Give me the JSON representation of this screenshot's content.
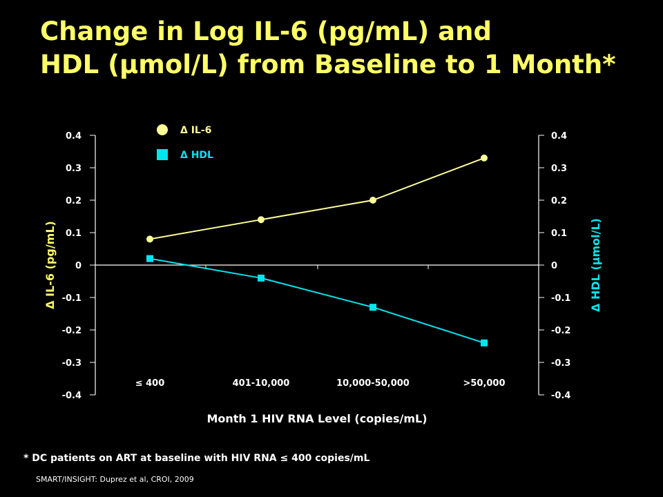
{
  "title": {
    "line1": "Change in Log IL-6 (pg/mL) and",
    "line2": "HDL (µmol/L) from Baseline to 1 Month*"
  },
  "chart_data": {
    "type": "line",
    "categories": [
      "≤ 400",
      "401-10,000",
      "10,000-50,000",
      ">50,000"
    ],
    "series": [
      {
        "name": "Δ IL-6",
        "marker": "circle",
        "color": "#ffff99",
        "values": [
          0.08,
          0.14,
          0.2,
          0.33
        ]
      },
      {
        "name": "Δ HDL",
        "marker": "square",
        "color": "#00e5ee",
        "values": [
          0.02,
          -0.04,
          -0.13,
          -0.24
        ]
      }
    ],
    "xlabel": "Month 1 HIV RNA Level (copies/mL)",
    "ylabel_left": "Δ IL-6 (pg/mL)",
    "ylabel_right": "Δ HDL (µmol/L)",
    "ylim": [
      -0.4,
      0.4
    ],
    "yticks": [
      0.4,
      0.3,
      0.2,
      0.1,
      0,
      -0.1,
      -0.2,
      -0.3,
      -0.4
    ],
    "ytick_labels": [
      "0.4",
      "0.3",
      "0.2",
      "0.1",
      "0",
      "-0.1",
      "-0.2",
      "-0.3",
      "-0.4"
    ],
    "legend_position": "top-left",
    "grid": false
  },
  "footnote": "* DC patients on ART at baseline with HIV RNA ≤ 400 copies/mL",
  "source": "SMART/INSIGHT: Duprez et al, CROI, 2009",
  "colors": {
    "background": "#000000",
    "title": "#ffff66",
    "axis": "#ffffff",
    "il6": "#ffff99",
    "hdl": "#00e5ee",
    "left_label": "#ffff66",
    "right_label": "#00e5ee"
  }
}
